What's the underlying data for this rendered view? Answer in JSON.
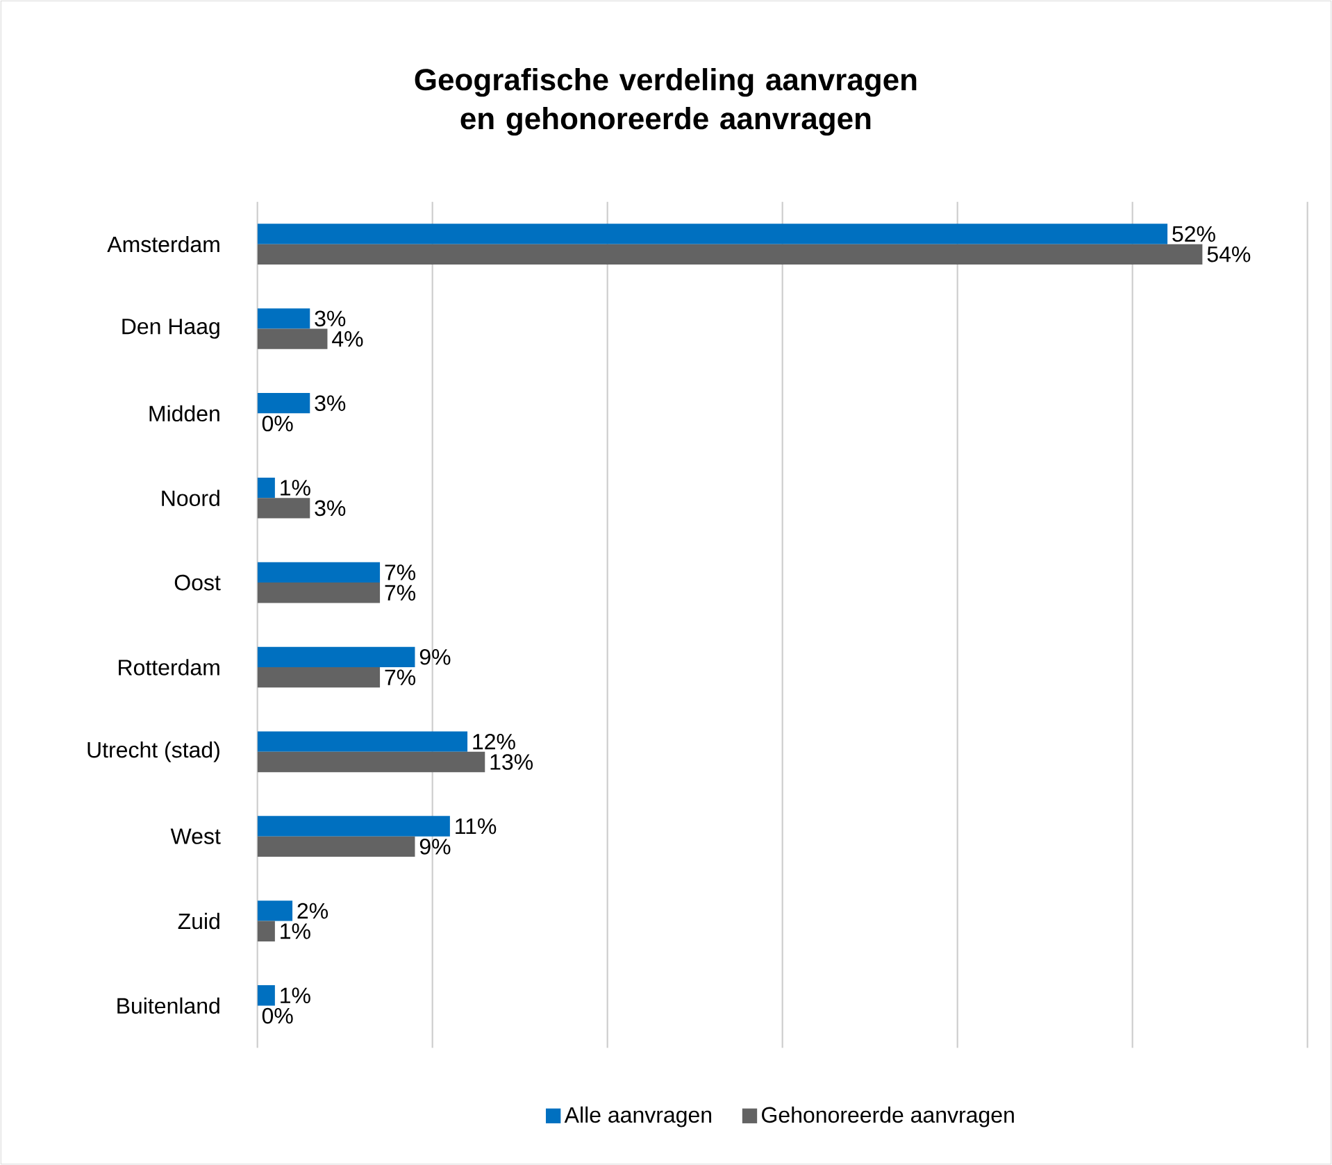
{
  "chart_data": {
    "type": "bar",
    "orientation": "horizontal",
    "title": "Geografische verdeling aanvragen en gehonoreerde aanvragen",
    "categories": [
      "Amsterdam",
      "Den Haag",
      "Midden",
      "Noord",
      "Oost",
      "Rotterdam",
      "Utrecht (stad)",
      "West",
      "Zuid",
      "Buitenland"
    ],
    "series": [
      {
        "name": "Alle aanvragen",
        "color": "#0070c0",
        "values": [
          52,
          3,
          3,
          1,
          7,
          9,
          12,
          11,
          2,
          1
        ],
        "value_labels": [
          "52%",
          "3%",
          "3%",
          "1%",
          "7%",
          "9%",
          "12%",
          "11%",
          "2%",
          "1%"
        ]
      },
      {
        "name": "Gehonoreerde aanvragen",
        "color": "#636363",
        "values": [
          54,
          4,
          0,
          3,
          7,
          7,
          13,
          9,
          1,
          0
        ],
        "value_labels": [
          "54%",
          "4%",
          "0%",
          "3%",
          "7%",
          "7%",
          "13%",
          "9%",
          "1%",
          "0%"
        ]
      }
    ],
    "xlim": [
      0,
      60
    ],
    "xticks": [
      {
        "value": 0,
        "label": null
      },
      {
        "value": 10,
        "label": null
      },
      {
        "value": 20,
        "label": null
      },
      {
        "value": 30,
        "label": null
      },
      {
        "value": 40,
        "label": null
      },
      {
        "value": 50,
        "label": null
      },
      {
        "value": 60,
        "label": null
      }
    ],
    "tick_labels": "y",
    "grid": "x",
    "legend": "bottom"
  }
}
